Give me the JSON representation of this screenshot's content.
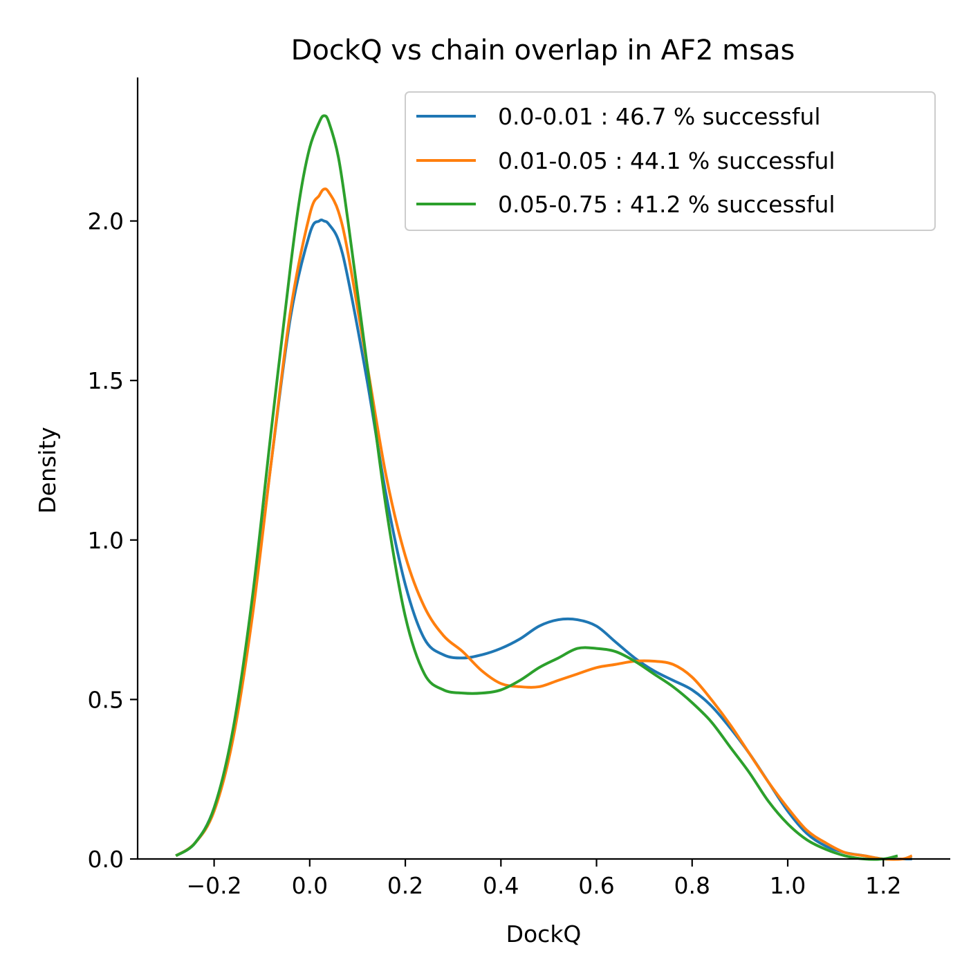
{
  "chart_data": {
    "type": "line",
    "title": "DockQ vs chain overlap in AF2 msas",
    "xlabel": "DockQ",
    "ylabel": "Density",
    "xlim": [
      -0.36,
      1.34
    ],
    "ylim": [
      0,
      2.45
    ],
    "x_ticks": [
      -0.2,
      0.0,
      0.2,
      0.4,
      0.6,
      0.8,
      1.0,
      1.2
    ],
    "x_tick_labels": [
      "−0.2",
      "0.0",
      "0.2",
      "0.4",
      "0.6",
      "0.8",
      "1.0",
      "1.2"
    ],
    "y_ticks": [
      0.0,
      0.5,
      1.0,
      1.5,
      2.0
    ],
    "y_tick_labels": [
      "0.0",
      "0.5",
      "1.0",
      "1.5",
      "2.0"
    ],
    "grid": false,
    "legend_position": "top-right",
    "series": [
      {
        "name": "0.0-0.01 : 46.7 % successful",
        "color": "#1f77b4",
        "x": [
          -0.28,
          -0.24,
          -0.2,
          -0.16,
          -0.12,
          -0.08,
          -0.04,
          0.0,
          0.02,
          0.03,
          0.04,
          0.06,
          0.08,
          0.12,
          0.16,
          0.2,
          0.24,
          0.28,
          0.32,
          0.36,
          0.4,
          0.44,
          0.48,
          0.52,
          0.56,
          0.6,
          0.64,
          0.68,
          0.72,
          0.76,
          0.8,
          0.84,
          0.88,
          0.92,
          0.96,
          1.0,
          1.04,
          1.08,
          1.12,
          1.16,
          1.2,
          1.24,
          1.26
        ],
        "y": [
          0.01,
          0.05,
          0.16,
          0.4,
          0.78,
          1.25,
          1.7,
          1.96,
          2.0,
          2.0,
          1.99,
          1.94,
          1.82,
          1.5,
          1.14,
          0.86,
          0.69,
          0.64,
          0.63,
          0.64,
          0.66,
          0.69,
          0.73,
          0.75,
          0.75,
          0.73,
          0.68,
          0.63,
          0.59,
          0.56,
          0.53,
          0.48,
          0.41,
          0.33,
          0.24,
          0.15,
          0.08,
          0.04,
          0.02,
          0.01,
          0.0,
          0.0,
          0.0
        ]
      },
      {
        "name": "0.01-0.05 : 44.1 % successful",
        "color": "#ff7f0e",
        "x": [
          -0.28,
          -0.24,
          -0.2,
          -0.16,
          -0.12,
          -0.08,
          -0.04,
          0.0,
          0.02,
          0.03,
          0.04,
          0.06,
          0.08,
          0.12,
          0.16,
          0.2,
          0.24,
          0.28,
          0.32,
          0.36,
          0.4,
          0.44,
          0.48,
          0.52,
          0.56,
          0.6,
          0.64,
          0.68,
          0.72,
          0.76,
          0.8,
          0.84,
          0.88,
          0.92,
          0.96,
          1.0,
          1.04,
          1.08,
          1.12,
          1.16,
          1.2,
          1.24,
          1.26
        ],
        "y": [
          0.01,
          0.05,
          0.15,
          0.38,
          0.76,
          1.25,
          1.72,
          2.02,
          2.08,
          2.1,
          2.09,
          2.03,
          1.9,
          1.55,
          1.2,
          0.95,
          0.79,
          0.7,
          0.65,
          0.59,
          0.55,
          0.54,
          0.54,
          0.56,
          0.58,
          0.6,
          0.61,
          0.62,
          0.62,
          0.61,
          0.57,
          0.5,
          0.42,
          0.33,
          0.24,
          0.16,
          0.09,
          0.05,
          0.02,
          0.01,
          0.0,
          0.0,
          0.01
        ]
      },
      {
        "name": "0.05-0.75 : 41.2 % successful",
        "color": "#2ca02c",
        "x": [
          -0.28,
          -0.24,
          -0.2,
          -0.16,
          -0.12,
          -0.08,
          -0.04,
          -0.02,
          0.0,
          0.02,
          0.03,
          0.04,
          0.06,
          0.08,
          0.12,
          0.16,
          0.2,
          0.24,
          0.28,
          0.32,
          0.36,
          0.4,
          0.44,
          0.48,
          0.52,
          0.56,
          0.6,
          0.64,
          0.68,
          0.72,
          0.76,
          0.8,
          0.84,
          0.88,
          0.92,
          0.96,
          1.0,
          1.04,
          1.08,
          1.12,
          1.16,
          1.2,
          1.23
        ],
        "y": [
          0.01,
          0.05,
          0.16,
          0.41,
          0.82,
          1.35,
          1.86,
          2.08,
          2.23,
          2.31,
          2.33,
          2.31,
          2.2,
          2.0,
          1.55,
          1.1,
          0.76,
          0.58,
          0.53,
          0.52,
          0.52,
          0.53,
          0.56,
          0.6,
          0.63,
          0.66,
          0.66,
          0.65,
          0.62,
          0.58,
          0.54,
          0.49,
          0.43,
          0.35,
          0.27,
          0.18,
          0.11,
          0.06,
          0.03,
          0.01,
          0.0,
          0.0,
          0.01
        ]
      }
    ]
  }
}
